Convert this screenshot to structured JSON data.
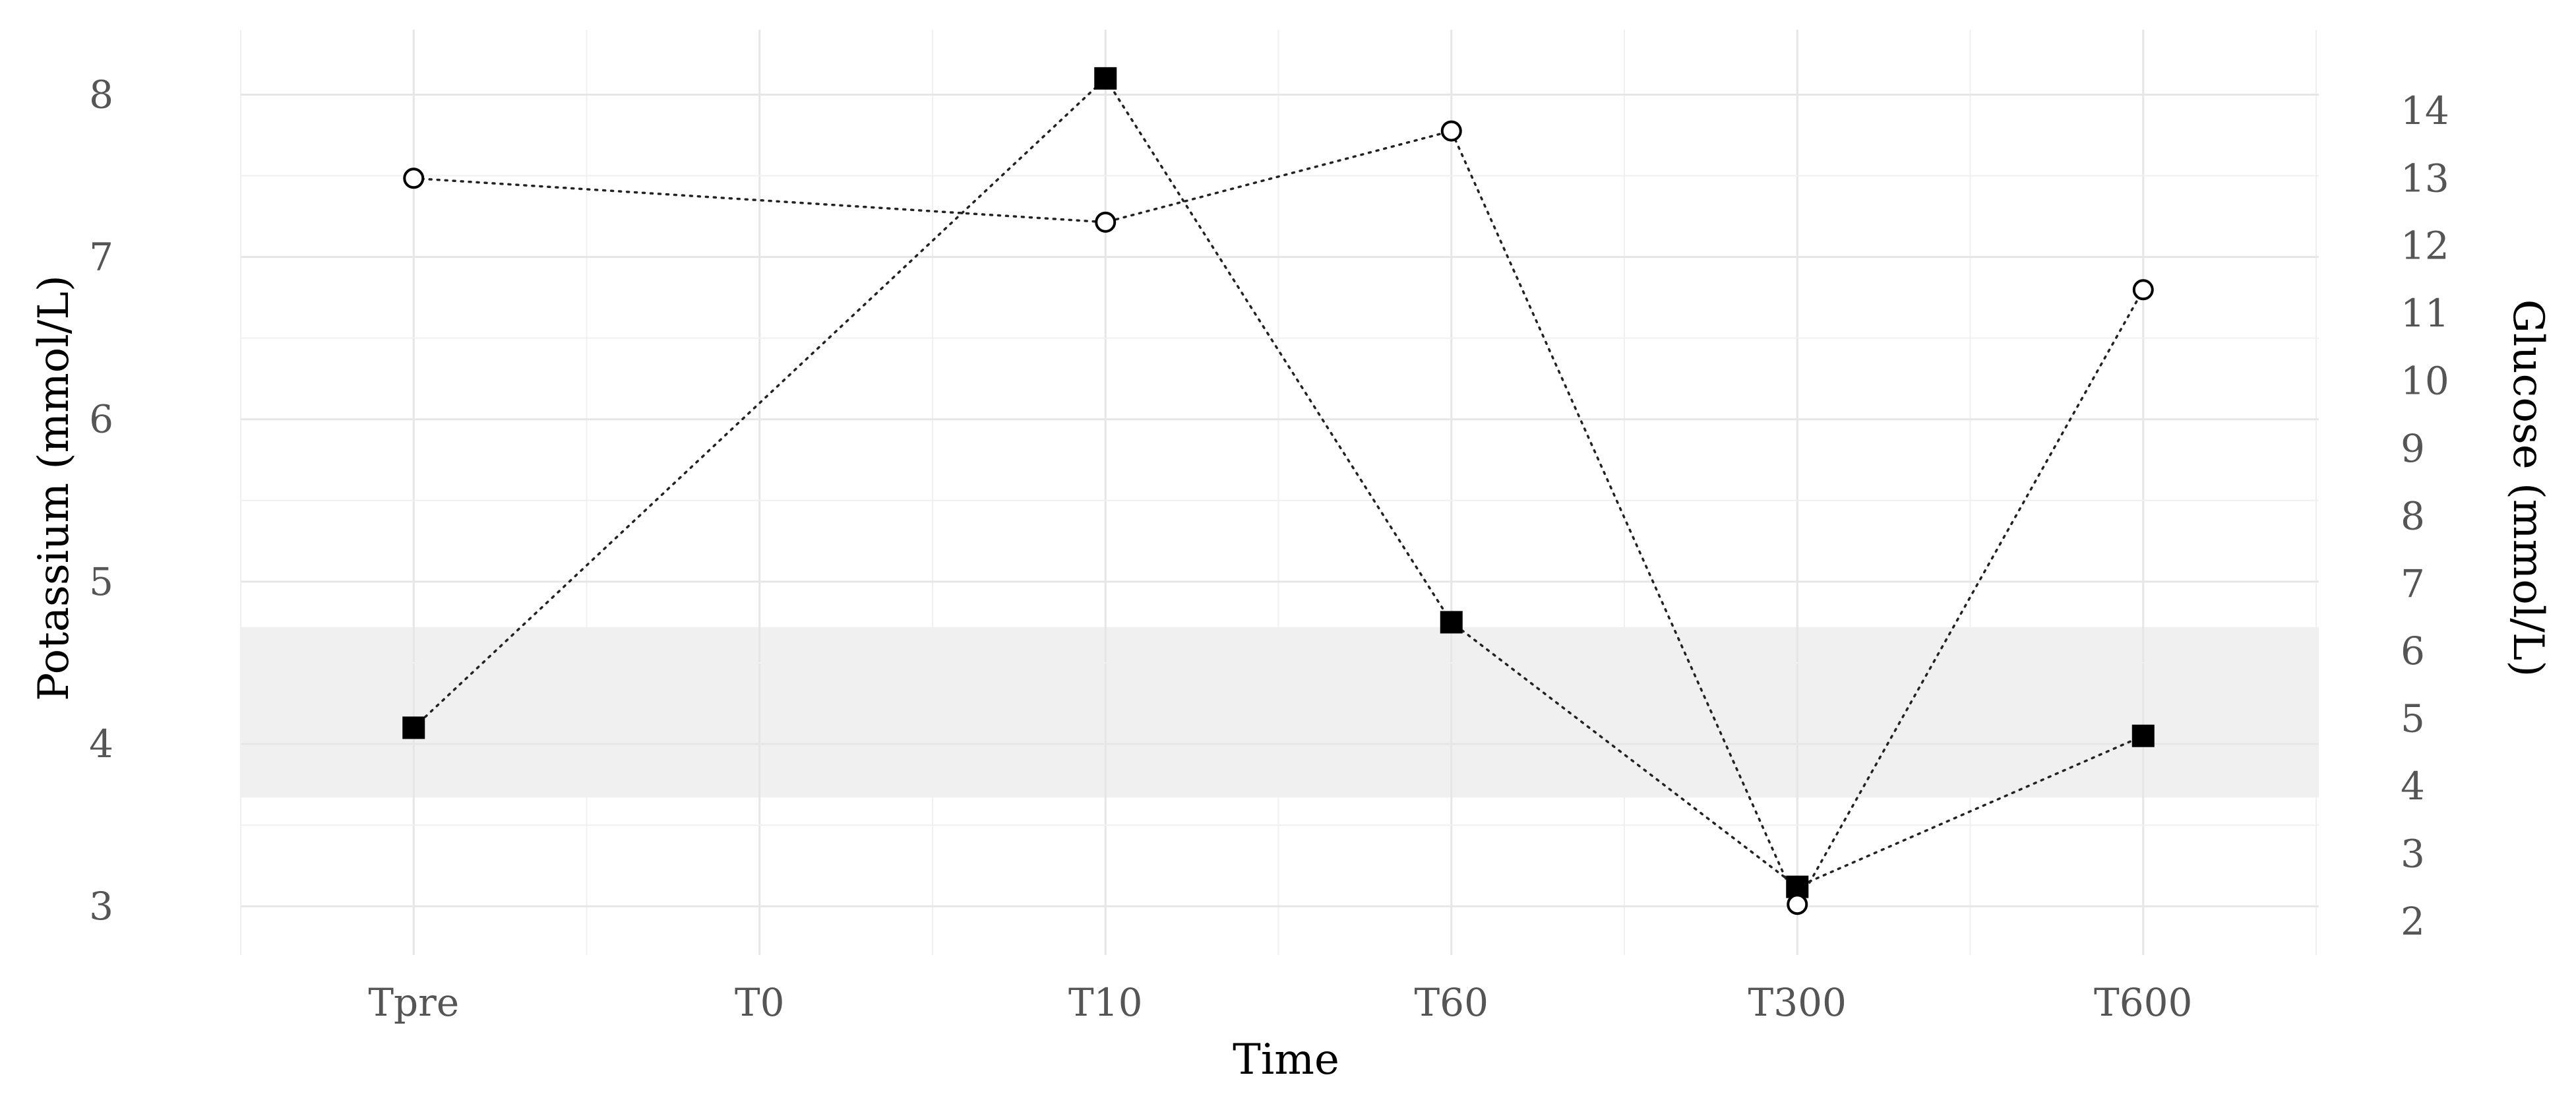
{
  "chart_data": {
    "type": "line",
    "categories": [
      "Tpre",
      "T0",
      "T10",
      "T60",
      "T300",
      "T600"
    ],
    "xlabel": "Time",
    "ylabel_left": "Potassium (mmol/L)",
    "ylabel_right": "Glucose (mmol/L)",
    "ylim_left": [
      2.7,
      8.4
    ],
    "ylim_right": [
      1.5,
      15.2
    ],
    "yticks_left": [
      3,
      4,
      5,
      6,
      7,
      8
    ],
    "yticks_right": [
      2,
      3,
      4,
      5,
      6,
      7,
      8,
      9,
      10,
      11,
      12,
      13,
      14
    ],
    "reference_band_left": [
      3.67,
      4.72
    ],
    "grid": true,
    "legend": "none",
    "series": [
      {
        "axis": "left",
        "marker": "square",
        "marker_color": "#000000",
        "points": [
          {
            "x": "Tpre",
            "y": 4.1
          },
          {
            "x": "T10",
            "y": 8.1
          },
          {
            "x": "T60",
            "y": 4.75
          },
          {
            "x": "T300",
            "y": 3.12
          },
          {
            "x": "T600",
            "y": 4.05
          }
        ]
      },
      {
        "axis": "right",
        "marker": "circle",
        "marker_color": "#ffffff",
        "points": [
          {
            "x": "Tpre",
            "y": 13.0
          },
          {
            "x": "T10",
            "y": 12.35
          },
          {
            "x": "T60",
            "y": 13.7
          },
          {
            "x": "T300",
            "y": 2.25
          },
          {
            "x": "T600",
            "y": 11.35
          }
        ]
      }
    ]
  }
}
